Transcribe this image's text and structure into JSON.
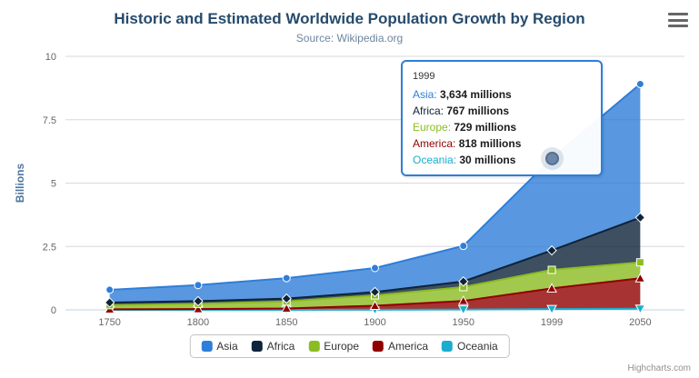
{
  "chart_data": {
    "type": "area",
    "stacking": "normal",
    "title": "Historic and Estimated Worldwide Population Growth by Region",
    "subtitle": "Source: Wikipedia.org",
    "ylabel": "Billions",
    "ylim": [
      0,
      10
    ],
    "yticks": [
      "0",
      "2.5",
      "5",
      "7.5",
      "10"
    ],
    "categories": [
      "1750",
      "1800",
      "1850",
      "1900",
      "1950",
      "1999",
      "2050"
    ],
    "unit": "millions",
    "legend_position": "bottom-center",
    "grid": true,
    "series": [
      {
        "name": "Asia",
        "color": "#2f7ed8",
        "marker": "circle",
        "values": [
          502,
          635,
          809,
          947,
          1402,
          3634,
          5268
        ]
      },
      {
        "name": "Africa",
        "color": "#0d233a",
        "marker": "diamond",
        "values": [
          106,
          107,
          111,
          133,
          221,
          767,
          1766
        ]
      },
      {
        "name": "Europe",
        "color": "#8bbc21",
        "marker": "square",
        "values": [
          163,
          203,
          276,
          408,
          547,
          729,
          628
        ]
      },
      {
        "name": "America",
        "color": "#910000",
        "marker": "triangle",
        "values": [
          18,
          31,
          54,
          156,
          339,
          818,
          1201
        ]
      },
      {
        "name": "Oceania",
        "color": "#1aadce",
        "marker": "triangle-down",
        "values": [
          2,
          2,
          2,
          6,
          13,
          30,
          46
        ]
      }
    ],
    "stack_bottom_to_top": [
      "Oceania",
      "America",
      "Europe",
      "Africa",
      "Asia"
    ],
    "hover": {
      "series": "Asia",
      "category_index": 5
    }
  },
  "tooltip": {
    "header": "1999",
    "rows": [
      {
        "label": "Asia:",
        "value": "3,634 millions"
      },
      {
        "label": "Africa:",
        "value": "767 millions"
      },
      {
        "label": "Europe:",
        "value": "729 millions"
      },
      {
        "label": "America:",
        "value": "818 millions"
      },
      {
        "label": "Oceania:",
        "value": "30 millions"
      }
    ]
  },
  "credits": "Highcharts.com"
}
